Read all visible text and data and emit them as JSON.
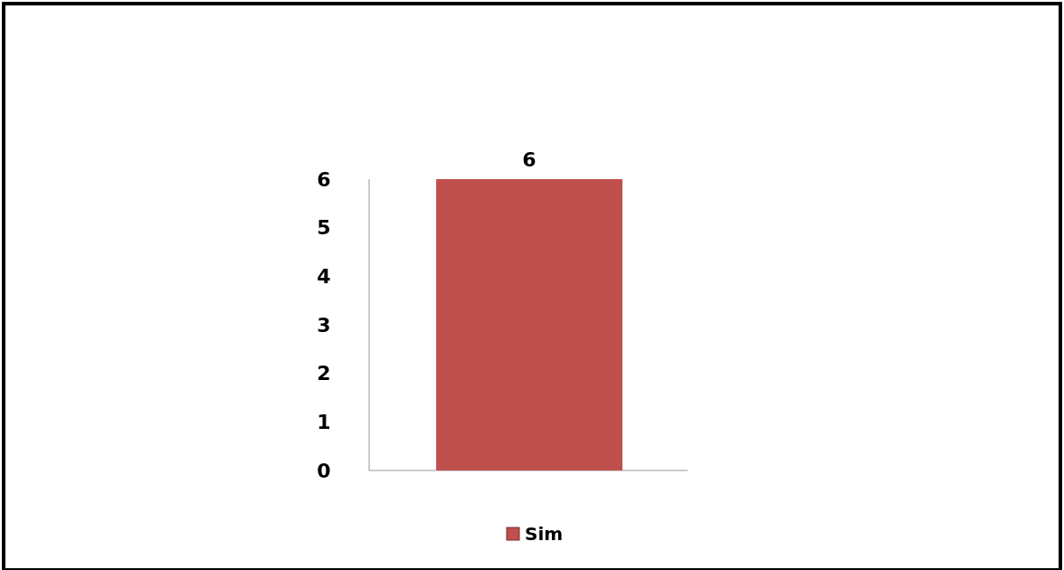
{
  "chart_data": {
    "type": "bar",
    "categories": [
      null
    ],
    "series": [
      {
        "name": "Sim",
        "color": "#c0504d",
        "values": [
          6
        ]
      }
    ],
    "ylim": [
      0,
      6
    ],
    "yticks": [
      0,
      1,
      2,
      3,
      4,
      5,
      6
    ],
    "data_labels": true,
    "legend": "bottom",
    "grid": false
  }
}
